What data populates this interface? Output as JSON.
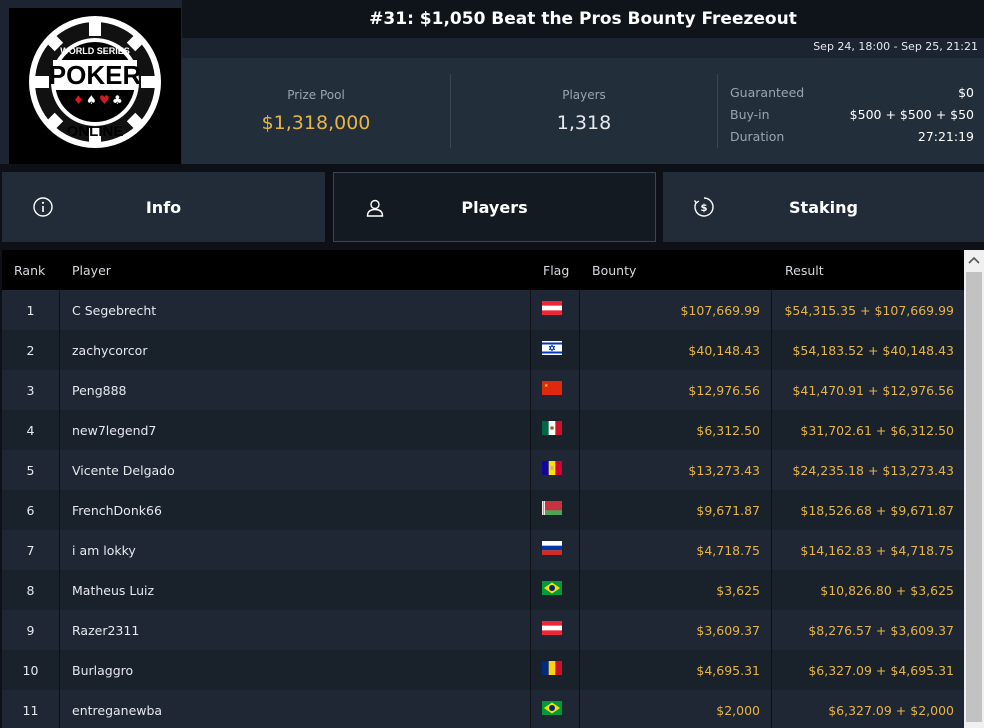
{
  "header": {
    "logo_text": [
      "WORLD SERIES",
      "POKER",
      "ONLINE"
    ],
    "title": "#31: $1,050 Beat the Pros Bounty Freezeout",
    "dates": "Sep 24, 18:00 - Sep 25, 21:21",
    "prize_pool_label": "Prize Pool",
    "prize_pool_value": "$1,318,000",
    "players_label": "Players",
    "players_value": "1,318",
    "details": [
      {
        "key": "Guaranteed",
        "value": "$0"
      },
      {
        "key": "Buy-in",
        "value": "$500 + $500 + $50"
      },
      {
        "key": "Duration",
        "value": "27:21:19"
      }
    ]
  },
  "tabs": [
    {
      "label": "Info",
      "icon": "info-icon",
      "active": false
    },
    {
      "label": "Players",
      "icon": "user-icon",
      "active": true
    },
    {
      "label": "Staking",
      "icon": "dollar-icon",
      "active": false
    }
  ],
  "table": {
    "columns": {
      "rank": "Rank",
      "player": "Player",
      "flag": "Flag",
      "bounty": "Bounty",
      "result": "Result"
    },
    "rows": [
      {
        "rank": "1",
        "player": "C Segebrecht",
        "flag": "austria-flag",
        "bounty": "$107,669.99",
        "result": "$54,315.35 + $107,669.99"
      },
      {
        "rank": "2",
        "player": "zachycorcor",
        "flag": "israel-flag",
        "bounty": "$40,148.43",
        "result": "$54,183.52 + $40,148.43"
      },
      {
        "rank": "3",
        "player": "Peng888",
        "flag": "china-flag",
        "bounty": "$12,976.56",
        "result": "$41,470.91 + $12,976.56"
      },
      {
        "rank": "4",
        "player": "new7legend7",
        "flag": "mexico-flag",
        "bounty": "$6,312.50",
        "result": "$31,702.61 + $6,312.50"
      },
      {
        "rank": "5",
        "player": "Vicente Delgado",
        "flag": "andorra-flag",
        "bounty": "$13,273.43",
        "result": "$24,235.18 + $13,273.43"
      },
      {
        "rank": "6",
        "player": "FrenchDonk66",
        "flag": "belarus-flag",
        "bounty": "$9,671.87",
        "result": "$18,526.68 + $9,671.87"
      },
      {
        "rank": "7",
        "player": "i am lokky",
        "flag": "russia-flag",
        "bounty": "$4,718.75",
        "result": "$14,162.83 + $4,718.75"
      },
      {
        "rank": "8",
        "player": "Matheus Luiz",
        "flag": "brazil-flag",
        "bounty": "$3,625",
        "result": "$10,826.80 + $3,625"
      },
      {
        "rank": "9",
        "player": "Razer2311",
        "flag": "austria-flag",
        "bounty": "$3,609.37",
        "result": "$8,276.57 + $3,609.37"
      },
      {
        "rank": "10",
        "player": "Burlaggro",
        "flag": "romania-flag",
        "bounty": "$4,695.31",
        "result": "$6,327.09 + $4,695.31"
      },
      {
        "rank": "11",
        "player": "entreganewba",
        "flag": "brazil-flag",
        "bounty": "$2,000",
        "result": "$6,327.09 + $2,000"
      }
    ]
  },
  "colors": {
    "accent_gold": "#e6b54a",
    "header_bg": "#1b2430",
    "row_odd": "#1e2733",
    "row_even": "#19212b"
  }
}
